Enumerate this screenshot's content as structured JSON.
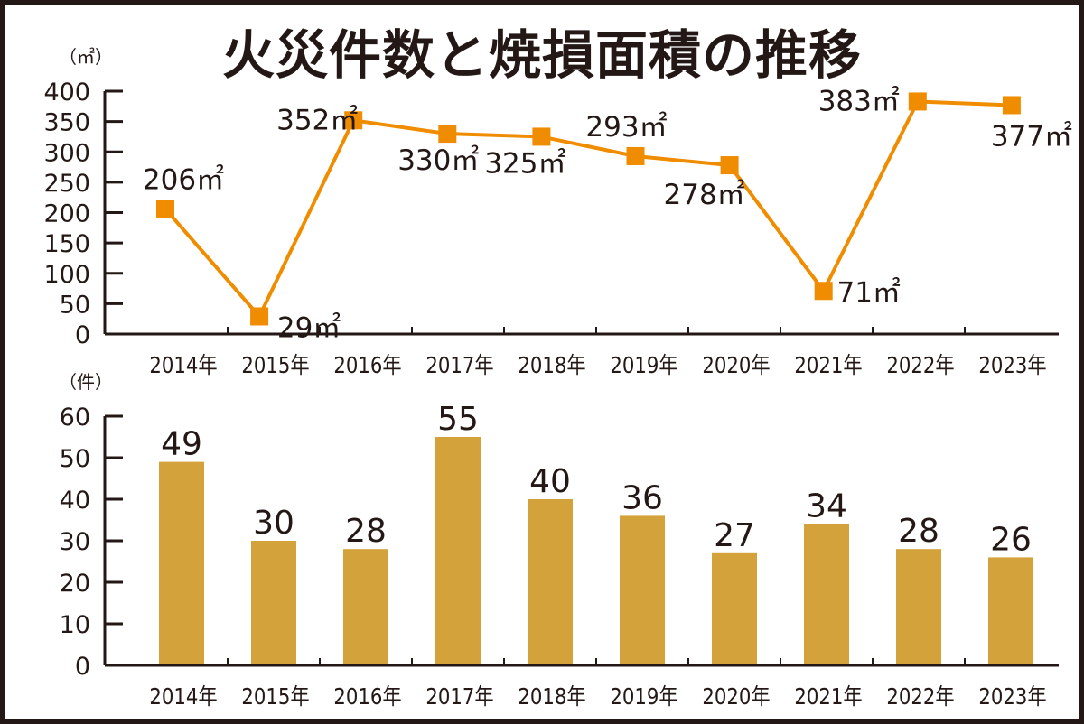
{
  "title": "火災件数と焼損面積の推移",
  "colors": {
    "line": "#f08c00",
    "bar": "#d4a23a",
    "axis": "#231815"
  },
  "chart_data": [
    {
      "type": "line",
      "title": "焼損面積",
      "ylabel": "（㎡）",
      "unit_suffix": "㎡",
      "categories": [
        "2014年",
        "2015年",
        "2016年",
        "2017年",
        "2018年",
        "2019年",
        "2020年",
        "2021年",
        "2022年",
        "2023年"
      ],
      "values": [
        206,
        29,
        352,
        330,
        325,
        293,
        278,
        71,
        383,
        377
      ],
      "data_labels": [
        "206㎡",
        "29㎡",
        "352㎡",
        "330㎡",
        "325㎡",
        "293㎡",
        "278㎡",
        "71㎡",
        "383㎡",
        "377㎡"
      ],
      "ylim": [
        0,
        400
      ],
      "yticks": [
        0,
        50,
        100,
        150,
        200,
        250,
        300,
        350,
        400
      ],
      "grid": false
    },
    {
      "type": "bar",
      "title": "火災件数",
      "ylabel": "（件）",
      "categories": [
        "2014年",
        "2015年",
        "2016年",
        "2017年",
        "2018年",
        "2019年",
        "2020年",
        "2021年",
        "2022年",
        "2023年"
      ],
      "values": [
        49,
        30,
        28,
        55,
        40,
        36,
        27,
        34,
        28,
        26
      ],
      "data_labels": [
        "49",
        "30",
        "28",
        "55",
        "40",
        "36",
        "27",
        "34",
        "28",
        "26"
      ],
      "ylim": [
        0,
        60
      ],
      "yticks": [
        0,
        10,
        20,
        30,
        40,
        50,
        60
      ],
      "grid": false
    }
  ]
}
